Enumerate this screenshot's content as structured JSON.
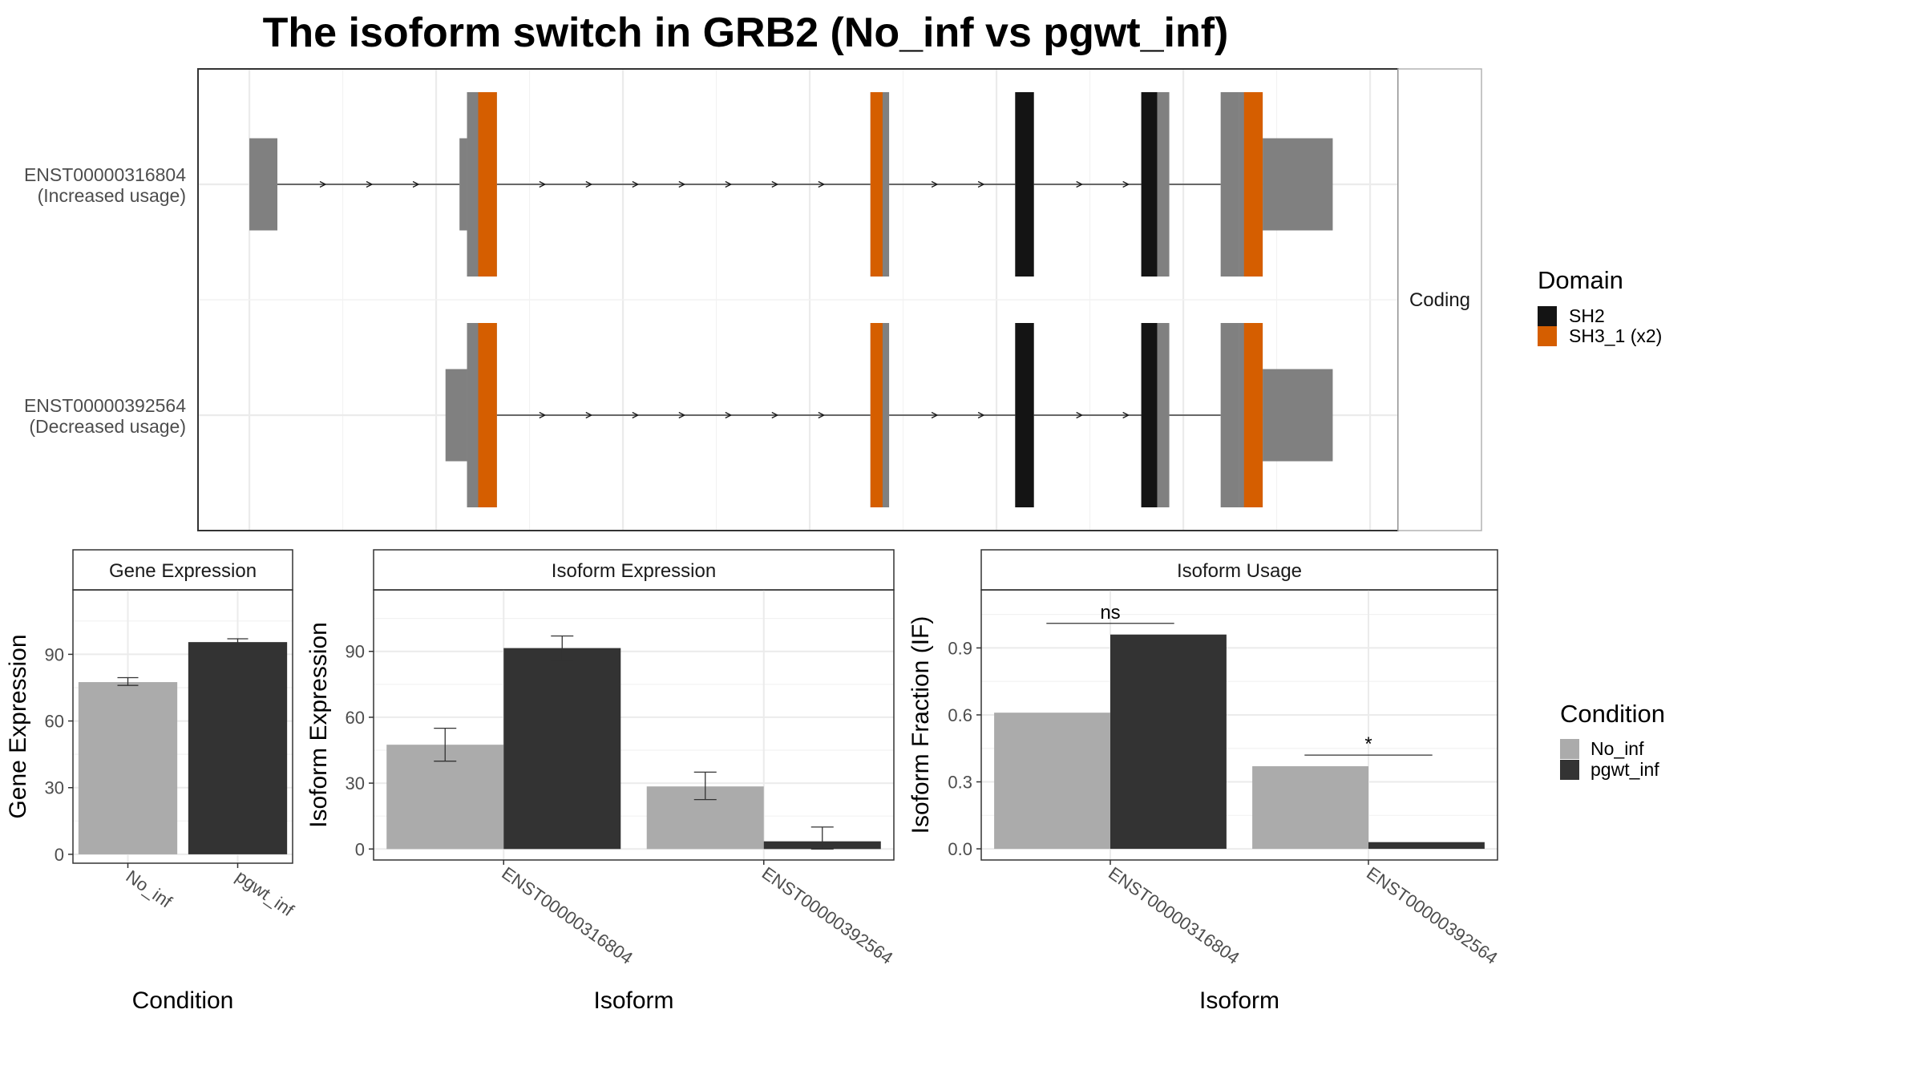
{
  "chart_data": [
    {
      "type": "gene-structure",
      "title": "The isoform switch in GRB2 (No_inf vs pgwt_inf)",
      "facet_label": "Coding",
      "transcripts": [
        {
          "id": "ENST00000316804",
          "usage_label": "(Increased usage)",
          "exons": [
            [
              0,
              3
            ],
            [
              22.5,
              26.5
            ],
            [
              66.5,
              68.5
            ],
            [
              82,
              84
            ],
            [
              95.5,
              98.5
            ],
            [
              104,
              116
            ]
          ],
          "domains": [
            {
              "domain": "SH3_1 (x2)",
              "range": [
                24.5,
                26.5
              ]
            },
            {
              "domain": "SH3_1 (x2)",
              "range": [
                66.5,
                67.8
              ]
            },
            {
              "domain": "SH2",
              "range": [
                82,
                84
              ]
            },
            {
              "domain": "SH2",
              "range": [
                95.5,
                97.2
              ]
            },
            {
              "domain": "SH3_1 (x2)",
              "range": [
                106.5,
                108.5
              ]
            }
          ]
        },
        {
          "id": "ENST00000392564",
          "usage_label": "(Decreased usage)",
          "exons": [
            [
              21,
              26.5
            ],
            [
              66.5,
              68.5
            ],
            [
              82,
              84
            ],
            [
              95.5,
              98.5
            ],
            [
              104,
              116
            ]
          ],
          "domains": [
            {
              "domain": "SH3_1 (x2)",
              "range": [
                24.5,
                26.5
              ]
            },
            {
              "domain": "SH3_1 (x2)",
              "range": [
                66.5,
                67.8
              ]
            },
            {
              "domain": "SH2",
              "range": [
                82,
                84
              ]
            },
            {
              "domain": "SH2",
              "range": [
                95.5,
                97.2
              ]
            },
            {
              "domain": "SH3_1 (x2)",
              "range": [
                106.5,
                108.5
              ]
            }
          ]
        }
      ],
      "x_range": [
        -5.5,
        123
      ],
      "legend": {
        "title": "Domain",
        "items": [
          {
            "name": "SH2",
            "color": "#141414"
          },
          {
            "name": "SH3_1 (x2)",
            "color": "#D55E00"
          }
        ],
        "placement": "right"
      },
      "colors": {
        "exon": "#808080",
        "intron": "#1a1a1a"
      }
    },
    {
      "type": "bar",
      "strip": "Gene Expression",
      "xlabel": "Condition",
      "ylabel": "Gene Expression",
      "categories": [
        "No_inf",
        "pgwt_inf"
      ],
      "values": [
        77.5,
        95.5
      ],
      "errors": [
        [
          76,
          79.5
        ],
        [
          94.5,
          97
        ]
      ],
      "ylim": [
        -4,
        119
      ],
      "yticks": [
        0,
        30,
        60,
        90
      ],
      "fill": [
        "#ABABAB",
        "#333333"
      ],
      "grid": true
    },
    {
      "type": "bar",
      "strip": "Isoform Expression",
      "xlabel": "Isoform",
      "ylabel": "Isoform Expression",
      "categories": [
        "ENST00000316804",
        "ENST00000392564"
      ],
      "series": [
        {
          "name": "No_inf",
          "values": [
            47.5,
            28.5
          ],
          "errors": [
            [
              40,
              55
            ],
            [
              22.5,
              35
            ]
          ],
          "color": "#ABABAB"
        },
        {
          "name": "pgwt_inf",
          "values": [
            91.5,
            3.5
          ],
          "errors": [
            [
              86,
              97
            ],
            [
              0,
              10
            ]
          ],
          "color": "#333333"
        }
      ],
      "ylim": [
        -5,
        118
      ],
      "yticks": [
        0,
        30,
        60,
        90
      ],
      "grid": true
    },
    {
      "type": "bar",
      "strip": "Isoform Usage",
      "xlabel": "Isoform",
      "ylabel": "Isoform Fraction (IF)",
      "categories": [
        "ENST00000316804",
        "ENST00000392564"
      ],
      "series": [
        {
          "name": "No_inf",
          "values": [
            0.61,
            0.37
          ],
          "color": "#ABABAB"
        },
        {
          "name": "pgwt_inf",
          "values": [
            0.96,
            0.03
          ],
          "color": "#333333"
        }
      ],
      "significance": [
        {
          "label": "ns",
          "y": 1.01
        },
        {
          "label": "*",
          "y": 0.42
        }
      ],
      "ylim": [
        -0.05,
        1.16
      ],
      "yticks": [
        "0.0",
        "0.3",
        "0.6",
        "0.9"
      ],
      "grid": true
    }
  ],
  "condition_legend": {
    "title": "Condition",
    "items": [
      {
        "name": "No_inf",
        "color": "#ABABAB"
      },
      {
        "name": "pgwt_inf",
        "color": "#333333"
      }
    ],
    "placement": "right"
  }
}
